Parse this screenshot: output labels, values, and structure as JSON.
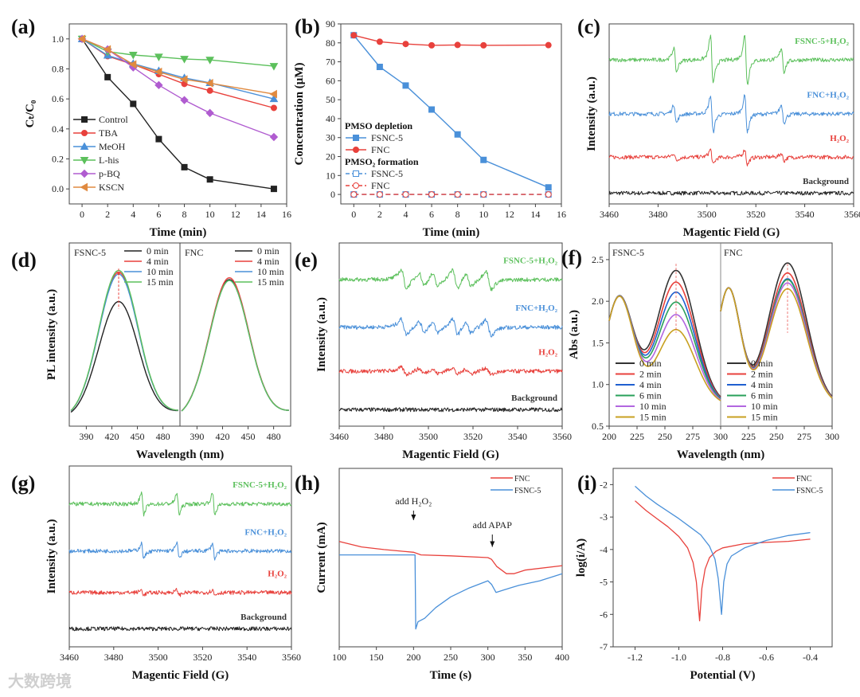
{
  "watermark": "大数跨境",
  "chart_data": [
    {
      "panel": "(a)",
      "type": "line",
      "xlabel": "Time (min)",
      "ylabel": "Cₜ/C₀",
      "xlim": [
        -1,
        16
      ],
      "ylim": [
        -0.1,
        1.1
      ],
      "xticks": [
        "0",
        "2",
        "4",
        "6",
        "8",
        "10",
        "12",
        "14",
        "16"
      ],
      "yticks": [
        "0.0",
        "0.2",
        "0.4",
        "0.6",
        "0.8",
        "1.0"
      ],
      "x": [
        0,
        2,
        4,
        6,
        8,
        10,
        15
      ],
      "series": [
        {
          "name": "Control",
          "color": "#222222",
          "marker": "square",
          "values": [
            1.0,
            0.745,
            0.567,
            0.332,
            0.145,
            0.063,
            0.0
          ]
        },
        {
          "name": "TBA",
          "color": "#e8413c",
          "marker": "circle",
          "values": [
            1.0,
            0.885,
            0.83,
            0.765,
            0.7,
            0.655,
            0.54
          ]
        },
        {
          "name": "MeOH",
          "color": "#4a90d9",
          "marker": "triangle-up",
          "values": [
            1.0,
            0.89,
            0.835,
            0.787,
            0.74,
            0.707,
            0.6
          ]
        },
        {
          "name": "L-his",
          "color": "#5cc05c",
          "marker": "triangle-down",
          "values": [
            1.0,
            0.915,
            0.893,
            0.88,
            0.866,
            0.86,
            0.818
          ]
        },
        {
          "name": "p-BQ",
          "color": "#b05cd0",
          "marker": "diamond",
          "values": [
            1.0,
            0.93,
            0.81,
            0.692,
            0.592,
            0.506,
            0.346
          ]
        },
        {
          "name": "KSCN",
          "color": "#e08a40",
          "marker": "triangle-left",
          "values": [
            1.0,
            0.93,
            0.83,
            0.78,
            0.73,
            0.705,
            0.632
          ]
        }
      ]
    },
    {
      "panel": "(b)",
      "type": "line",
      "xlabel": "Time (min)",
      "ylabel": "Concentration (μM)",
      "xlim": [
        -1,
        16
      ],
      "ylim": [
        -5,
        90
      ],
      "xticks": [
        "0",
        "2",
        "4",
        "6",
        "8",
        "10",
        "12",
        "14",
        "16"
      ],
      "yticks": [
        "0",
        "10",
        "20",
        "30",
        "40",
        "50",
        "60",
        "70",
        "80",
        "90"
      ],
      "x": [
        0,
        2,
        4,
        6,
        8,
        10,
        15
      ],
      "legend_groups": [
        {
          "title": "PMSO depletion",
          "series": [
            0,
            1
          ]
        },
        {
          "title": "PMSO₂ formation",
          "series": [
            2,
            3
          ]
        }
      ],
      "series": [
        {
          "name": "FSNC-5",
          "color": "#4a90d9",
          "marker": "square",
          "values": [
            84,
            67.3,
            57.5,
            44.8,
            31.7,
            18.2,
            3.7
          ]
        },
        {
          "name": "FNC",
          "color": "#e8413c",
          "marker": "circle",
          "values": [
            84,
            80.6,
            79.4,
            78.7,
            78.9,
            78.7,
            78.8
          ]
        },
        {
          "name": "FSNC-5",
          "color": "#4a90d9",
          "marker": "square-open",
          "dashed": true,
          "values": [
            0,
            0,
            0,
            0,
            0,
            0,
            0
          ]
        },
        {
          "name": "FNC",
          "color": "#e8413c",
          "marker": "circle-open",
          "dashed": true,
          "values": [
            0,
            0,
            0,
            0,
            0,
            0,
            0
          ]
        }
      ]
    },
    {
      "panel": "(c)",
      "type": "line",
      "subtype": "epr",
      "xlabel": "Magentic Field (G)",
      "ylabel": "Intensity (a.u.)",
      "xlim": [
        3460,
        3560
      ],
      "ylim": [
        0,
        10
      ],
      "xticks": [
        "3460",
        "3480",
        "3500",
        "3520",
        "3540",
        "3560"
      ],
      "traces": [
        {
          "name": "Background",
          "color": "#222222",
          "offset": 0.6,
          "amp": 0,
          "peaks_G": []
        },
        {
          "name": "H₂O₂",
          "color": "#e8413c",
          "offset": 2.6,
          "amp": 0.5,
          "peaks_G": [
            3487,
            3502,
            3516,
            3531
          ],
          "ratios": [
            1,
            2,
            2,
            1
          ]
        },
        {
          "name": "FNC+H₂O₂",
          "color": "#4a90d9",
          "offset": 5.0,
          "amp": 1.2,
          "peaks_G": [
            3487,
            3502,
            3516,
            3531
          ],
          "ratios": [
            1,
            2,
            2,
            1
          ]
        },
        {
          "name": "FSNC-5+H₂O₂",
          "color": "#5cc05c",
          "offset": 8.0,
          "amp": 1.6,
          "peaks_G": [
            3487,
            3502,
            3516,
            3531
          ],
          "ratios": [
            1,
            2,
            2,
            1
          ]
        }
      ]
    },
    {
      "panel": "(d)",
      "type": "line",
      "xlabel": "Wavelength (nm)",
      "ylabel": "PL intensity (a.u.)",
      "xlim": [
        370,
        500
      ],
      "ylim": [
        0,
        1
      ],
      "xticks": [
        "390",
        "420",
        "450",
        "480"
      ],
      "center_nm": 428,
      "subpanels": [
        {
          "title": "FSNC-5",
          "series": [
            {
              "name": "0 min",
              "color": "#222222",
              "peak": 0.64
            },
            {
              "name": "4 min",
              "color": "#e8413c",
              "peak": 0.8
            },
            {
              "name": "10 min",
              "color": "#4a90d9",
              "peak": 0.79
            },
            {
              "name": "15 min",
              "color": "#5cc05c",
              "peak": 0.81
            }
          ]
        },
        {
          "title": "FNC",
          "series": [
            {
              "name": "0 min",
              "color": "#222222",
              "peak": 0.76
            },
            {
              "name": "4 min",
              "color": "#e8413c",
              "peak": 0.77
            },
            {
              "name": "10 min",
              "color": "#4a90d9",
              "peak": 0.755
            },
            {
              "name": "15 min",
              "color": "#5cc05c",
              "peak": 0.755
            }
          ]
        }
      ]
    },
    {
      "panel": "(e)",
      "type": "line",
      "subtype": "epr",
      "xlabel": "Magentic Field (G)",
      "ylabel": "Intensity (a.u.)",
      "xlim": [
        3460,
        3560
      ],
      "ylim": [
        0,
        10
      ],
      "xticks": [
        "3460",
        "3480",
        "3500",
        "3520",
        "3540",
        "3560"
      ],
      "traces": [
        {
          "name": "Background",
          "color": "#222222",
          "offset": 0.9,
          "amp": 0,
          "peaks_G": []
        },
        {
          "name": "H₂O₂",
          "color": "#e8413c",
          "offset": 3.0,
          "amp": 0.45,
          "peaks_G": [
            3489,
            3497,
            3503,
            3512,
            3518,
            3527
          ],
          "ratios": [
            1,
            0.7,
            0.7,
            1,
            0.7,
            1
          ]
        },
        {
          "name": "FNC+H₂O₂",
          "color": "#4a90d9",
          "offset": 5.4,
          "amp": 1.0,
          "peaks_G": [
            3489,
            3497,
            3503,
            3512,
            3518,
            3527
          ],
          "ratios": [
            1,
            0.7,
            0.7,
            1,
            0.7,
            1
          ]
        },
        {
          "name": "FSNC-5+H₂O₂",
          "color": "#5cc05c",
          "offset": 8.0,
          "amp": 1.2,
          "peaks_G": [
            3489,
            3497,
            3503,
            3512,
            3518,
            3527
          ],
          "ratios": [
            1,
            0.7,
            0.7,
            1,
            0.7,
            1
          ]
        }
      ]
    },
    {
      "panel": "(f)",
      "type": "line",
      "xlabel": "Wavelength (nm)",
      "ylabel": "Abs (a.u.)",
      "xlim": [
        200,
        300
      ],
      "ylim": [
        0.5,
        2.7
      ],
      "xticks": [
        "200",
        "225",
        "250",
        "275",
        "300"
      ],
      "yticks": [
        "0.5",
        "1.0",
        "1.5",
        "2.0",
        "2.5"
      ],
      "subpanels": [
        {
          "title": "FSNC-5",
          "series": [
            {
              "name": "0 min",
              "color": "#333333",
              "peak_260": 2.37
            },
            {
              "name": "2 min",
              "color": "#e8413c",
              "peak_260": 2.23
            },
            {
              "name": "4 min",
              "color": "#1f5fd0",
              "peak_260": 2.11
            },
            {
              "name": "6 min",
              "color": "#2aa05a",
              "peak_260": 1.99
            },
            {
              "name": "10 min",
              "color": "#b266e0",
              "peak_260": 1.84
            },
            {
              "name": "15 min",
              "color": "#c8a020",
              "peak_260": 1.66
            }
          ]
        },
        {
          "title": "FNC",
          "series": [
            {
              "name": "0 min",
              "color": "#333333",
              "peak_260": 2.46
            },
            {
              "name": "2 min",
              "color": "#e8413c",
              "peak_260": 2.34
            },
            {
              "name": "4 min",
              "color": "#1f5fd0",
              "peak_260": 2.27
            },
            {
              "name": "6 min",
              "color": "#2aa05a",
              "peak_260": 2.26
            },
            {
              "name": "10 min",
              "color": "#b266e0",
              "peak_260": 2.22
            },
            {
              "name": "15 min",
              "color": "#c8a020",
              "peak_260": 2.15
            }
          ]
        }
      ]
    },
    {
      "panel": "(g)",
      "type": "line",
      "subtype": "epr",
      "xlabel": "Magentic Field (G)",
      "ylabel": "Intensity (a.u.)",
      "xlim": [
        3460,
        3560
      ],
      "ylim": [
        0,
        10
      ],
      "xticks": [
        "3460",
        "3480",
        "3500",
        "3520",
        "3540",
        "3560"
      ],
      "traces": [
        {
          "name": "Background",
          "color": "#222222",
          "offset": 1.0,
          "amp": 0,
          "peaks_G": []
        },
        {
          "name": "H₂O₂",
          "color": "#e8413c",
          "offset": 3.0,
          "amp": 0.35,
          "peaks_G": [
            3493,
            3509,
            3525
          ],
          "ratios": [
            1,
            1,
            1
          ]
        },
        {
          "name": "FNC+H₂O₂",
          "color": "#4a90d9",
          "offset": 5.3,
          "amp": 1.0,
          "peaks_G": [
            3493,
            3509,
            3525
          ],
          "ratios": [
            1,
            1,
            1
          ]
        },
        {
          "name": "FSNC-5+H₂O₂",
          "color": "#5cc05c",
          "offset": 7.9,
          "amp": 1.4,
          "peaks_G": [
            3493,
            3509,
            3525
          ],
          "ratios": [
            1,
            1,
            1
          ]
        }
      ]
    },
    {
      "panel": "(h)",
      "type": "line",
      "xlabel": "Time (s)",
      "ylabel": "Current (mA)",
      "xlim": [
        100,
        400
      ],
      "ylim": [
        0,
        10
      ],
      "xticks": [
        "100",
        "150",
        "200",
        "250",
        "300",
        "350",
        "400"
      ],
      "annotations": [
        {
          "text": "add H₂O₂",
          "x": 200
        },
        {
          "text": "add APAP",
          "x": 306
        }
      ],
      "series": [
        {
          "name": "FNC",
          "color": "#e8413c",
          "points": [
            [
              100,
              5.9
            ],
            [
              130,
              5.6
            ],
            [
              160,
              5.45
            ],
            [
              200,
              5.3
            ],
            [
              210,
              5.15
            ],
            [
              250,
              5.1
            ],
            [
              300,
              5.0
            ],
            [
              305,
              4.9
            ],
            [
              312,
              4.5
            ],
            [
              325,
              4.1
            ],
            [
              335,
              4.1
            ],
            [
              350,
              4.3
            ],
            [
              400,
              4.55
            ]
          ]
        },
        {
          "name": "FSNC-5",
          "color": "#4a90d9",
          "points": [
            [
              100,
              5.15
            ],
            [
              202,
              5.15
            ],
            [
              203,
              1.0
            ],
            [
              206,
              1.4
            ],
            [
              215,
              1.6
            ],
            [
              230,
              2.2
            ],
            [
              250,
              2.8
            ],
            [
              275,
              3.3
            ],
            [
              300,
              3.7
            ],
            [
              305,
              3.5
            ],
            [
              311,
              3.05
            ],
            [
              330,
              3.3
            ],
            [
              342,
              3.45
            ],
            [
              370,
              3.7
            ],
            [
              400,
              4.1
            ]
          ]
        }
      ]
    },
    {
      "panel": "(i)",
      "type": "line",
      "xlabel": "Potential (V)",
      "ylabel": "log(i/A)",
      "xlim": [
        -1.3,
        -0.3
      ],
      "ylim": [
        -7,
        -1.5
      ],
      "xticks": [
        "-1.2",
        "-1.0",
        "-0.8",
        "-0.6",
        "-0.4"
      ],
      "yticks": [
        "-7",
        "-6",
        "-5",
        "-4",
        "-3",
        "-2"
      ],
      "series": [
        {
          "name": "FNC",
          "color": "#e8413c",
          "points": [
            [
              -1.2,
              -2.5
            ],
            [
              -1.15,
              -2.8
            ],
            [
              -1.1,
              -3.05
            ],
            [
              -1.05,
              -3.3
            ],
            [
              -1.0,
              -3.6
            ],
            [
              -0.96,
              -3.95
            ],
            [
              -0.935,
              -4.4
            ],
            [
              -0.92,
              -5.0
            ],
            [
              -0.905,
              -6.2
            ],
            [
              -0.895,
              -5.2
            ],
            [
              -0.88,
              -4.6
            ],
            [
              -0.86,
              -4.25
            ],
            [
              -0.83,
              -4.05
            ],
            [
              -0.8,
              -3.95
            ],
            [
              -0.7,
              -3.82
            ],
            [
              -0.6,
              -3.78
            ],
            [
              -0.5,
              -3.75
            ],
            [
              -0.4,
              -3.68
            ]
          ]
        },
        {
          "name": "FSNC-5",
          "color": "#4a90d9",
          "points": [
            [
              -1.2,
              -2.05
            ],
            [
              -1.15,
              -2.35
            ],
            [
              -1.1,
              -2.6
            ],
            [
              -1.0,
              -3.05
            ],
            [
              -0.95,
              -3.3
            ],
            [
              -0.9,
              -3.55
            ],
            [
              -0.86,
              -3.9
            ],
            [
              -0.835,
              -4.3
            ],
            [
              -0.82,
              -4.9
            ],
            [
              -0.805,
              -6.0
            ],
            [
              -0.795,
              -5.0
            ],
            [
              -0.78,
              -4.45
            ],
            [
              -0.76,
              -4.2
            ],
            [
              -0.7,
              -3.95
            ],
            [
              -0.6,
              -3.72
            ],
            [
              -0.5,
              -3.57
            ],
            [
              -0.4,
              -3.48
            ]
          ]
        }
      ]
    }
  ]
}
